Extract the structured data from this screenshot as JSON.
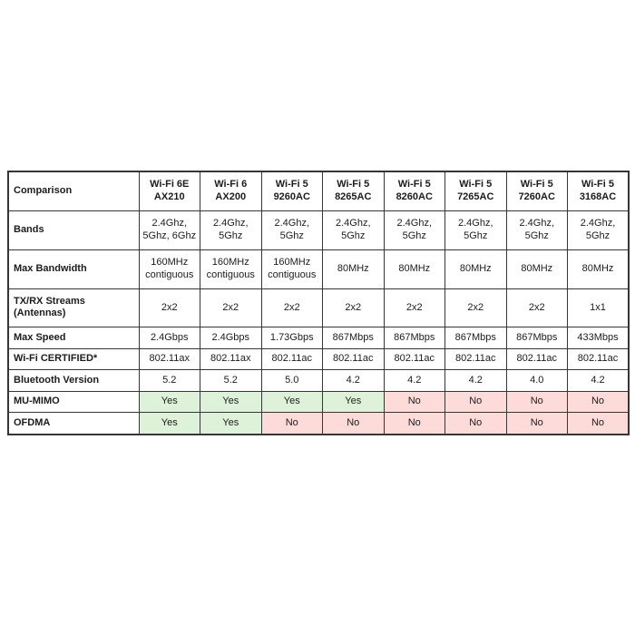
{
  "colors": {
    "yes_bg": "#def2d9",
    "no_bg": "#fcdbd9"
  },
  "table": {
    "corner_label": "Comparison",
    "headers": [
      "Wi-Fi 6E\nAX210",
      "Wi-Fi 6\nAX200",
      "Wi-Fi 5\n9260AC",
      "Wi-Fi 5\n8265AC",
      "Wi-Fi 5\n8260AC",
      "Wi-Fi 5\n7265AC",
      "Wi-Fi 5\n7260AC",
      "Wi-Fi 5\n3168AC"
    ],
    "rows": [
      {
        "label": "Bands",
        "values": [
          "2.4Ghz,\n5Ghz, 6Ghz",
          "2.4Ghz,\n5Ghz",
          "2.4Ghz,\n5Ghz",
          "2.4Ghz,\n5Ghz",
          "2.4Ghz,\n5Ghz",
          "2.4Ghz,\n5Ghz",
          "2.4Ghz,\n5Ghz",
          "2.4Ghz,\n5Ghz"
        ]
      },
      {
        "label": "Max Bandwidth",
        "values": [
          "160MHz\ncontiguous",
          "160MHz\ncontiguous",
          "160MHz\ncontiguous",
          "80MHz",
          "80MHz",
          "80MHz",
          "80MHz",
          "80MHz"
        ]
      },
      {
        "label": "TX/RX Streams (Antennas)",
        "values": [
          "2x2",
          "2x2",
          "2x2",
          "2x2",
          "2x2",
          "2x2",
          "2x2",
          "1x1"
        ]
      },
      {
        "label": "Max Speed",
        "values": [
          "2.4Gbps",
          "2.4Gbps",
          "1.73Gbps",
          "867Mbps",
          "867Mbps",
          "867Mbps",
          "867Mbps",
          "433Mbps"
        ]
      },
      {
        "label": "Wi-Fi CERTIFIED*",
        "values": [
          "802.11ax",
          "802.11ax",
          "802.11ac",
          "802.11ac",
          "802.11ac",
          "802.11ac",
          "802.11ac",
          "802.11ac"
        ]
      },
      {
        "label": "Bluetooth Version",
        "values": [
          "5.2",
          "5.2",
          "5.0",
          "4.2",
          "4.2",
          "4.2",
          "4.0",
          "4.2"
        ]
      },
      {
        "label": "MU-MIMO",
        "values": [
          "Yes",
          "Yes",
          "Yes",
          "Yes",
          "No",
          "No",
          "No",
          "No"
        ]
      },
      {
        "label": "OFDMA",
        "values": [
          "Yes",
          "Yes",
          "No",
          "No",
          "No",
          "No",
          "No",
          "No"
        ]
      }
    ]
  }
}
